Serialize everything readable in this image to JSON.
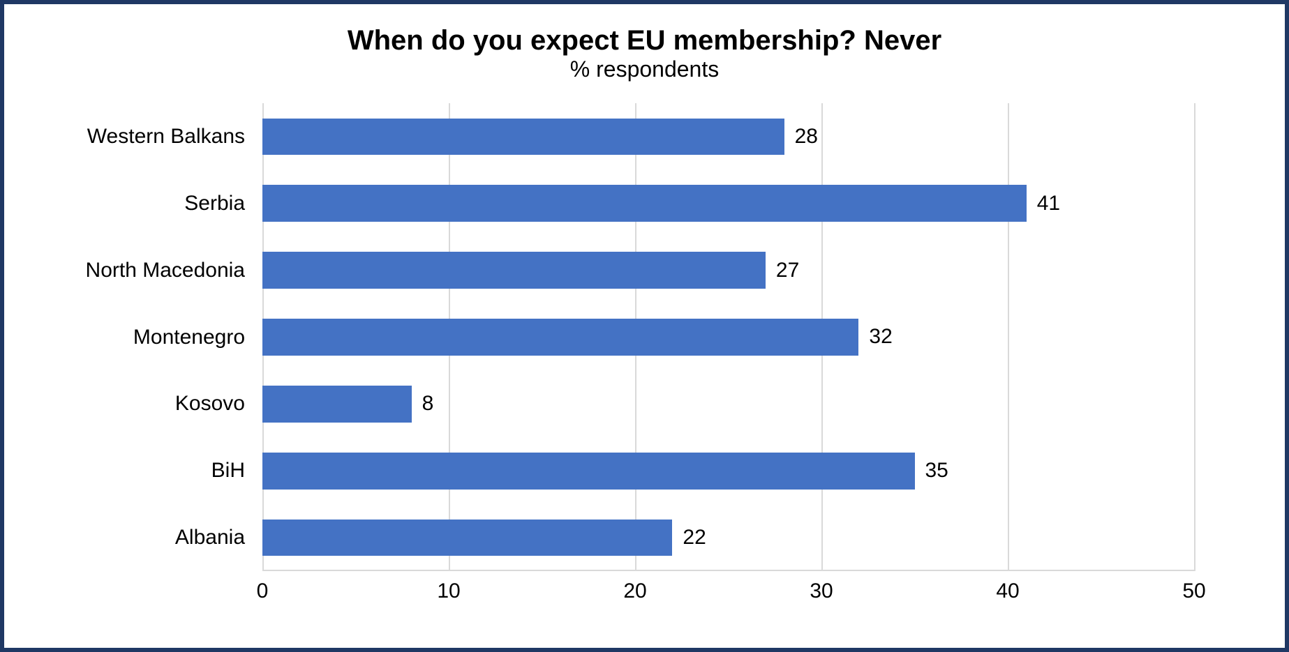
{
  "chart": {
    "type": "bar-horizontal",
    "title": "When do you expect EU membership? Never",
    "subtitle": "% respondents",
    "title_fontsize": 40,
    "subtitle_fontsize": 32,
    "background_color": "#ffffff",
    "border_color": "#1f3864",
    "border_width": 6,
    "bar_color": "#4472c4",
    "grid_color": "#d9d9d9",
    "text_color": "#000000",
    "axis_label_fontsize": 30,
    "value_label_fontsize": 30,
    "category_label_fontsize": 30,
    "bar_width_ratio": 0.55,
    "x_axis": {
      "min": 0,
      "max": 50,
      "tick_step": 10,
      "ticks": [
        0,
        10,
        20,
        30,
        40,
        50
      ]
    },
    "categories": [
      {
        "label": "Western Balkans",
        "value": 28
      },
      {
        "label": "Serbia",
        "value": 41
      },
      {
        "label": "North Macedonia",
        "value": 27
      },
      {
        "label": "Montenegro",
        "value": 32
      },
      {
        "label": "Kosovo",
        "value": 8
      },
      {
        "label": "BiH",
        "value": 35
      },
      {
        "label": "Albania",
        "value": 22
      }
    ]
  }
}
